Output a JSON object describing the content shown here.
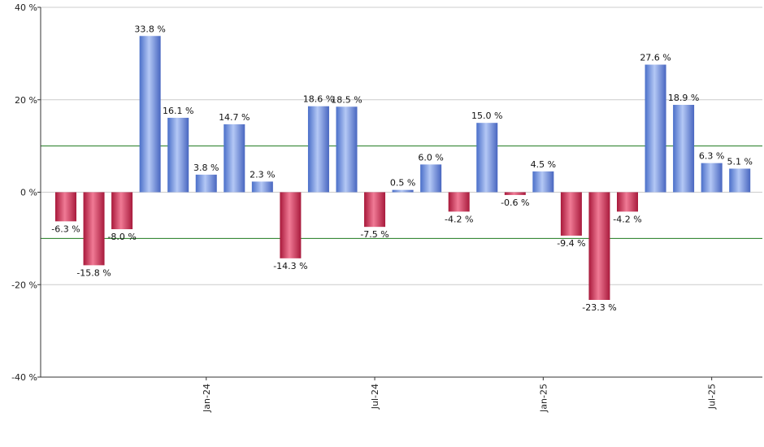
{
  "chart_data": {
    "type": "bar",
    "y_unit": "%",
    "ylim": [
      -40,
      40
    ],
    "y_ticks": [
      40,
      20,
      0,
      -20,
      -40
    ],
    "y_tick_labels": [
      "40 %",
      "20 %",
      "0 %",
      "-20 %",
      "-40 %"
    ],
    "grid": true,
    "reference_lines": [
      10,
      -10
    ],
    "colors": {
      "positive": "#7fa2ec",
      "negative": "#cc3355",
      "reference_line": "#1e7a1e",
      "grid": "#cccccc"
    },
    "values": [
      -6.3,
      -15.8,
      -8.0,
      33.8,
      16.1,
      3.8,
      14.7,
      2.3,
      -14.3,
      18.6,
      18.5,
      -7.5,
      0.5,
      6.0,
      -4.2,
      15.0,
      -0.6,
      4.5,
      -9.4,
      -23.3,
      -4.2,
      27.6,
      18.9,
      6.3,
      5.1
    ],
    "data_labels": [
      "-6.3 %",
      "-15.8 %",
      "-8.0 %",
      "33.8 %",
      "16.1 %",
      "3.8 %",
      "14.7 %",
      "2.3 %",
      "-14.3 %",
      "18.6 %",
      "18.5 %",
      "-7.5 %",
      "0.5 %",
      "6.0 %",
      "-4.2 %",
      "15.0 %",
      "-0.6 %",
      "4.5 %",
      "-9.4 %",
      "-23.3 %",
      "-4.2 %",
      "27.6 %",
      "18.9 %",
      "6.3 %",
      "5.1 %"
    ],
    "x_tick_labels": [
      {
        "label": "Jan-24",
        "bar_index": 5
      },
      {
        "label": "Jul-24",
        "bar_index": 11
      },
      {
        "label": "Jan-25",
        "bar_index": 17
      },
      {
        "label": "Jul-25",
        "bar_index": 23
      }
    ]
  }
}
